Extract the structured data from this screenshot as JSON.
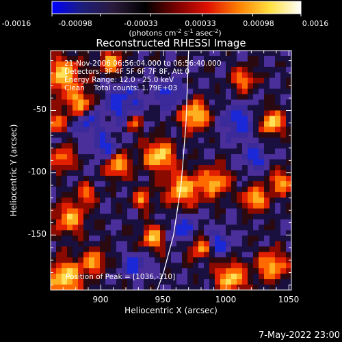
{
  "colorbar": {
    "tick_labels": [
      "-0.0016",
      "-0.00098",
      "-0.00033",
      "0.00033",
      "0.00098",
      "0.0016"
    ],
    "tick_values": [
      -0.0016,
      -0.00098,
      -0.00033,
      0.00033,
      0.00098,
      0.0016
    ],
    "range": [
      -0.0016,
      0.0016
    ],
    "stops": [
      "#0000ff",
      "#1e1e7a",
      "#2a1a3a",
      "#000000",
      "#7a0000",
      "#e01000",
      "#ff8000",
      "#ffe040",
      "#ffffff"
    ]
  },
  "units_label": "(photons cm",
  "units_parts": [
    "(photons cm",
    "-2",
    " s",
    "-1",
    " asec",
    "-2",
    ")"
  ],
  "chart_data": {
    "type": "heatmap",
    "title": "Reconstructed RHESSI Image",
    "xlabel": "Heliocentric X (arcsec)",
    "ylabel": "Heliocentric Y (arcsec)",
    "xlim": [
      860,
      1052
    ],
    "ylim": [
      -194,
      -2
    ],
    "x_ticks": [
      900,
      950,
      1000,
      1050
    ],
    "y_ticks": [
      -150,
      -100,
      -50
    ],
    "x_tick_labels": [
      "900",
      "950",
      "1000",
      "1050"
    ],
    "y_tick_labels": [
      "-150",
      "-100",
      "-50"
    ],
    "annotations": [
      "21-Nov-2006 06:56:04.000 to 06:56:40.000",
      "Detectors: 3F 4F 5F 6F 7F 8F, Att 0",
      "Energy Range: 12.0 - 25.0 keV",
      "Clean    Total counts: 1.79E+03"
    ],
    "peak_label": "Position of Peak = [1036,-110]",
    "limb": [
      [
        970,
        -2
      ],
      [
        968,
        -60
      ],
      [
        964,
        -110
      ],
      [
        958,
        -150
      ],
      [
        950,
        -180
      ],
      [
        945,
        -194
      ]
    ]
  },
  "timestamp": "7-May-2022 23:00"
}
